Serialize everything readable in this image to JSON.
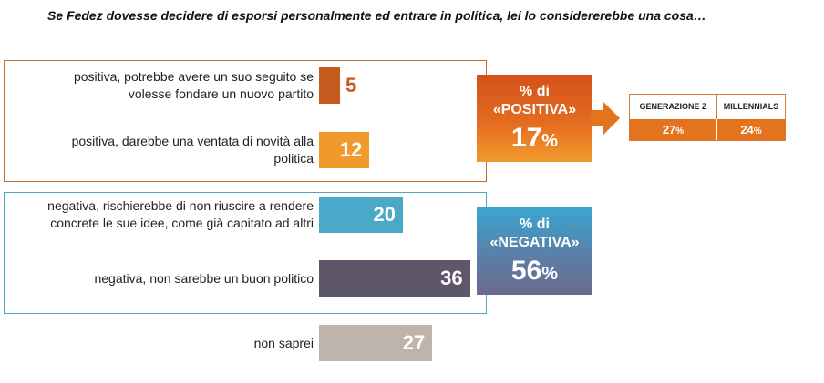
{
  "title": "Se Fedez dovesse decidere di esporsi personalmente ed entrare in politica, lei lo considererebbe una cosa…",
  "chart_data": {
    "type": "bar",
    "orientation": "horizontal",
    "categories": [
      "positiva, potrebbe avere un suo seguito se volesse fondare un nuovo partito",
      "positiva, darebbe una ventata di novità alla politica",
      "negativa, rischierebbe di non riuscire a rendere concrete le sue idee, come già capitato ad altri",
      "negativa, non sarebbe un buon politico",
      "non saprei"
    ],
    "values": [
      5,
      12,
      20,
      36,
      27
    ],
    "colors": [
      "#c55a1e",
      "#f09a2e",
      "#4aa8c8",
      "#5e5669",
      "#bfb4ab"
    ],
    "unit": "%"
  },
  "rows": [
    {
      "label_lines": [
        "positiva, potrebbe avere un suo seguito se",
        "volesse fondare un nuovo partito"
      ],
      "value": "5"
    },
    {
      "label_lines": [
        "positiva, darebbe una ventata di novità alla",
        "politica"
      ],
      "value": "12"
    },
    {
      "label_lines": [
        "negativa, rischierebbe di non riuscire a rendere",
        "concrete le sue idee, come già capitato ad altri"
      ],
      "value": "20"
    },
    {
      "label_lines": [
        "negativa, non sarebbe un buon politico"
      ],
      "value": "36"
    },
    {
      "label_lines": [
        "non saprei"
      ],
      "value": "27"
    }
  ],
  "summary_positive": {
    "line1": "% di",
    "line2": "«POSITIVA»",
    "value": "17",
    "unit": "%",
    "color": "#e46c1f"
  },
  "summary_negative": {
    "line1": "% di",
    "line2": "«NEGATIVA»",
    "value": "56",
    "unit": "%",
    "color": "#5b7fa8"
  },
  "generations": {
    "headers": [
      "GENERAZIONE Z",
      "MILLENNIALS"
    ],
    "values": [
      "27",
      "24"
    ],
    "unit": "%",
    "color": "#e3731d"
  }
}
